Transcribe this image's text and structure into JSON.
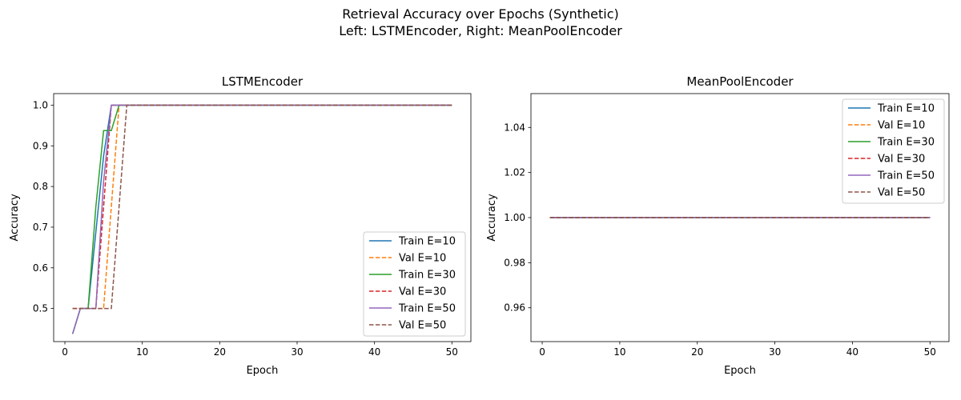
{
  "figure": {
    "title_line1": "Retrieval Accuracy over Epochs (Synthetic)",
    "title_line2": "Left: LSTMEncoder, Right: MeanPoolEncoder"
  },
  "chart_data": [
    {
      "type": "line",
      "title": "LSTMEncoder",
      "xlabel": "Epoch",
      "ylabel": "Accuracy",
      "xlim": [
        -1.45,
        52.45
      ],
      "ylim": [
        0.4185,
        1.0285
      ],
      "xticks": [
        0,
        10,
        20,
        30,
        40,
        50
      ],
      "yticks": [
        0.5,
        0.6,
        0.7,
        0.8,
        0.9,
        1.0
      ],
      "ytick_labels": [
        "0.5",
        "0.6",
        "0.7",
        "0.8",
        "0.9",
        "1.0"
      ],
      "legend_position": "lower-right",
      "series": [
        {
          "name": "Train E=10",
          "color": "#1f77b4",
          "dash": "solid",
          "points": [
            [
              1,
              0.4375
            ],
            [
              2,
              0.5
            ],
            [
              3,
              0.5
            ],
            [
              4,
              0.6875
            ],
            [
              5,
              0.875
            ],
            [
              6,
              1.0
            ],
            [
              50,
              1.0
            ]
          ]
        },
        {
          "name": "Val E=10",
          "color": "#ff7f0e",
          "dash": "dashed",
          "points": [
            [
              1,
              0.5
            ],
            [
              2,
              0.5
            ],
            [
              3,
              0.5
            ],
            [
              4,
              0.5
            ],
            [
              5,
              0.5
            ],
            [
              6,
              0.75
            ],
            [
              7,
              1.0
            ],
            [
              50,
              1.0
            ]
          ]
        },
        {
          "name": "Train E=30",
          "color": "#2ca02c",
          "dash": "solid",
          "points": [
            [
              1,
              0.4375
            ],
            [
              2,
              0.5
            ],
            [
              3,
              0.5
            ],
            [
              4,
              0.75
            ],
            [
              5,
              0.9375
            ],
            [
              6,
              0.9375
            ],
            [
              7,
              1.0
            ],
            [
              50,
              1.0
            ]
          ]
        },
        {
          "name": "Val E=30",
          "color": "#d62728",
          "dash": "dashed",
          "points": [
            [
              1,
              0.5
            ],
            [
              2,
              0.5
            ],
            [
              3,
              0.5
            ],
            [
              4,
              0.5
            ],
            [
              5,
              0.75
            ],
            [
              6,
              1.0
            ],
            [
              50,
              1.0
            ]
          ]
        },
        {
          "name": "Train E=50",
          "color": "#9467bd",
          "dash": "solid",
          "points": [
            [
              1,
              0.4375
            ],
            [
              2,
              0.5
            ],
            [
              3,
              0.5
            ],
            [
              4,
              0.5
            ],
            [
              5,
              0.8125
            ],
            [
              6,
              1.0
            ],
            [
              50,
              1.0
            ]
          ]
        },
        {
          "name": "Val E=50",
          "color": "#8c564b",
          "dash": "dashed",
          "points": [
            [
              1,
              0.5
            ],
            [
              2,
              0.5
            ],
            [
              3,
              0.5
            ],
            [
              4,
              0.5
            ],
            [
              5,
              0.5
            ],
            [
              6,
              0.5
            ],
            [
              7,
              0.75
            ],
            [
              8,
              1.0
            ],
            [
              50,
              1.0
            ]
          ]
        }
      ]
    },
    {
      "type": "line",
      "title": "MeanPoolEncoder",
      "xlabel": "Epoch",
      "ylabel": "Accuracy",
      "xlim": [
        -1.45,
        52.45
      ],
      "ylim": [
        0.945,
        1.055
      ],
      "xticks": [
        0,
        10,
        20,
        30,
        40,
        50
      ],
      "yticks": [
        0.96,
        0.98,
        1.0,
        1.02,
        1.04
      ],
      "ytick_labels": [
        "0.96",
        "0.98",
        "1.00",
        "1.02",
        "1.04"
      ],
      "legend_position": "upper-right",
      "series": [
        {
          "name": "Train E=10",
          "color": "#1f77b4",
          "dash": "solid",
          "points": [
            [
              1,
              1.0
            ],
            [
              50,
              1.0
            ]
          ]
        },
        {
          "name": "Val E=10",
          "color": "#ff7f0e",
          "dash": "dashed",
          "points": [
            [
              1,
              1.0
            ],
            [
              50,
              1.0
            ]
          ]
        },
        {
          "name": "Train E=30",
          "color": "#2ca02c",
          "dash": "solid",
          "points": [
            [
              1,
              1.0
            ],
            [
              50,
              1.0
            ]
          ]
        },
        {
          "name": "Val E=30",
          "color": "#d62728",
          "dash": "dashed",
          "points": [
            [
              1,
              1.0
            ],
            [
              50,
              1.0
            ]
          ]
        },
        {
          "name": "Train E=50",
          "color": "#9467bd",
          "dash": "solid",
          "points": [
            [
              1,
              1.0
            ],
            [
              50,
              1.0
            ]
          ]
        },
        {
          "name": "Val E=50",
          "color": "#8c564b",
          "dash": "dashed",
          "points": [
            [
              1,
              1.0
            ],
            [
              50,
              1.0
            ]
          ]
        }
      ]
    }
  ]
}
